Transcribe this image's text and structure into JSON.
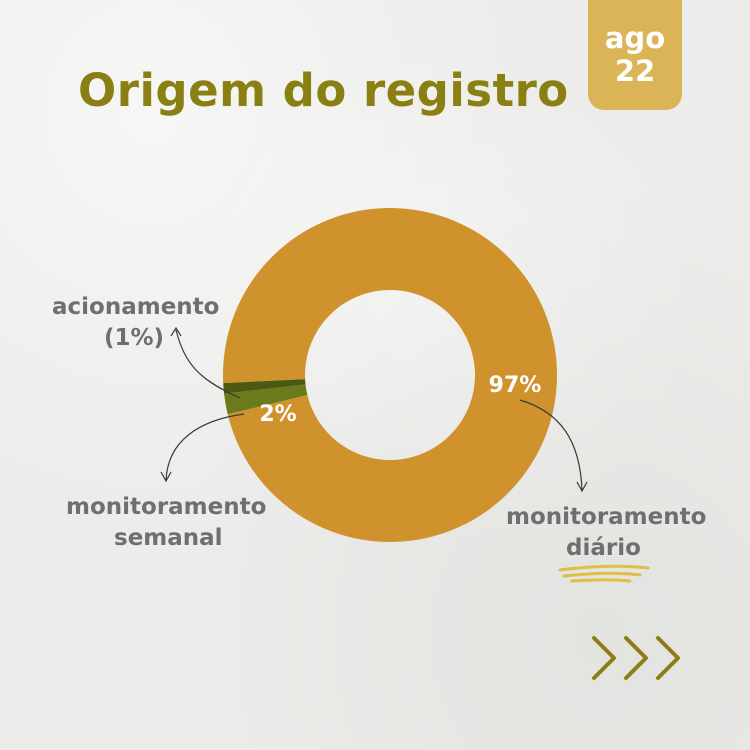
{
  "badge": {
    "month": "ago",
    "year": "22"
  },
  "title": "Origem do registro",
  "chart_data": {
    "type": "pie",
    "style": "donut",
    "title": "Origem do registro",
    "slices": [
      {
        "label": "monitoramento diário",
        "value": 97,
        "display": "97%",
        "color": "#cf922d"
      },
      {
        "label": "monitoramento semanal",
        "value": 2,
        "display": "2%",
        "color": "#6b7a1a"
      },
      {
        "label": "acionamento",
        "value": 1,
        "display": "(1%)",
        "color": "#4a5a10"
      }
    ]
  },
  "labels": {
    "acionamento": {
      "line1": "acionamento",
      "line2": "(1%)"
    },
    "semanal": {
      "line1": "monitoramento",
      "line2": "semanal"
    },
    "diario": {
      "line1": "monitoramento",
      "line2": "diário"
    }
  },
  "colors": {
    "accent": "#8a7f12",
    "gold": "#dcb458",
    "donut": "#cf922d"
  },
  "icons": {
    "next": "triple-chevron-right-icon"
  }
}
